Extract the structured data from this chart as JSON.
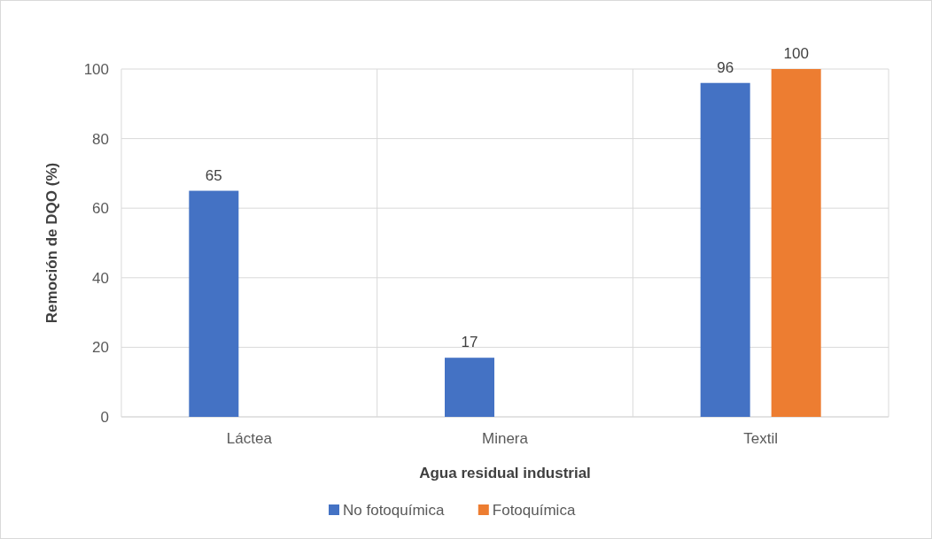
{
  "chart_data": {
    "type": "bar",
    "xlabel": "Agua residual industrial",
    "ylabel": "Remoción de DQO (%)",
    "categories": [
      "Láctea",
      "Minera",
      "Textil"
    ],
    "series": [
      {
        "name": "No fotoquímica",
        "color": "#4472c4",
        "values": [
          65,
          17,
          96
        ]
      },
      {
        "name": "Fotoquímica",
        "color": "#ed7d31",
        "values": [
          null,
          null,
          100
        ]
      }
    ],
    "ylim": [
      0,
      100
    ],
    "yticks": [
      0,
      20,
      40,
      60,
      80,
      100
    ],
    "grid": true,
    "legend": "bottom",
    "data_labels": true
  }
}
